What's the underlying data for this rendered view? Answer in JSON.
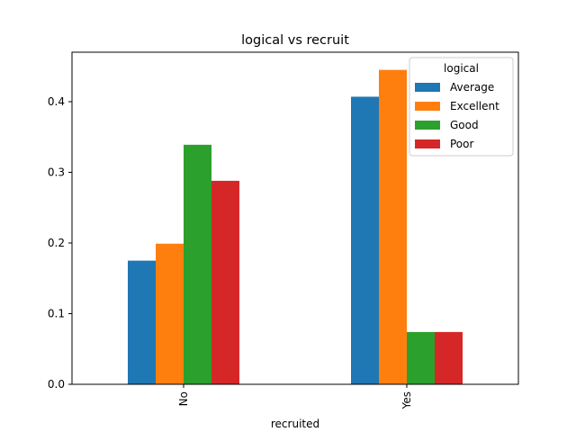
{
  "chart_data": {
    "type": "bar",
    "title": "logical vs recruit",
    "xlabel": "recruited",
    "ylabel": "",
    "categories": [
      "No",
      "Yes"
    ],
    "ylim": [
      0,
      0.47
    ],
    "yticks": [
      0.0,
      0.1,
      0.2,
      0.3,
      0.4
    ],
    "ytick_labels": [
      "0.0",
      "0.1",
      "0.2",
      "0.3",
      "0.4"
    ],
    "grid": false,
    "legend": {
      "title": "logical",
      "placement": "top-right"
    },
    "series": [
      {
        "name": "Average",
        "color": "#1f77b4",
        "values": [
          0.175,
          0.407
        ]
      },
      {
        "name": "Excellent",
        "color": "#ff7f0e",
        "values": [
          0.199,
          0.445
        ]
      },
      {
        "name": "Good",
        "color": "#2ca02c",
        "values": [
          0.339,
          0.074
        ]
      },
      {
        "name": "Poor",
        "color": "#d62728",
        "values": [
          0.288,
          0.074
        ]
      }
    ]
  }
}
